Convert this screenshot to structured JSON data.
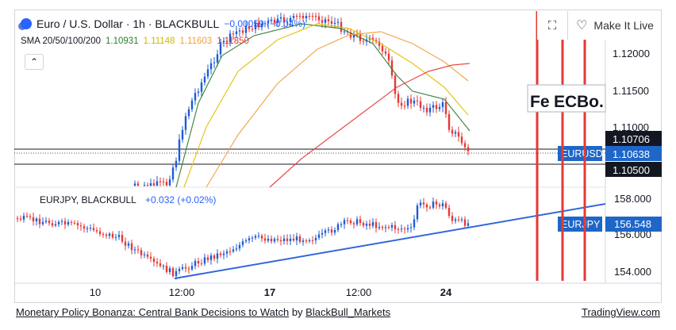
{
  "header": {
    "symbol": "Euro / U.S. Dollar · 1h · BLACKBULL",
    "change": "−0.00059 (−0.04%)",
    "sma_label": "SMA 20/50/100/200",
    "sma_values": [
      "1.10931",
      "1.11148",
      "1.11603",
      "1.11850"
    ],
    "sma_colors": [
      "#2e7d32",
      "#e0c000",
      "#f0a03c",
      "#e53935"
    ]
  },
  "buttons": {
    "collapse": "⌃",
    "expand": "⛶",
    "make_live": "Make It Live",
    "heart": "♡"
  },
  "price_axis": {
    "labels": [
      "1.12000",
      "1.11500",
      "1.11000"
    ],
    "tags": [
      {
        "text": "1.10706",
        "bg": "#131722"
      },
      {
        "text": "1.10638",
        "bg": "#1e66c8"
      },
      {
        "text": "1.10500",
        "bg": "#131722"
      }
    ],
    "symbol_tag": "EURUSD"
  },
  "sub_pane": {
    "title": "EURJPY, BLACKBULL",
    "change": "+0.032 (+0.02%)",
    "axis_labels": [
      "158.000",
      "156.000",
      "154.000"
    ],
    "last_tag": "156.548",
    "symbol_tag": "EURJPY"
  },
  "events": [
    "Fe",
    "EC",
    "Bo."
  ],
  "time_axis": [
    "10",
    "12:00",
    "17",
    "12:00",
    "24"
  ],
  "footer": {
    "title": "Monetary Policy Bonanza: Central Bank Decisions to Watch",
    "by": "by",
    "author": "BlackBull_Markets",
    "site": "TradingView.com"
  },
  "colors": {
    "up": "#1e5bd6",
    "down": "#e53935",
    "trendline": "#3366dd",
    "event_line": "#e53935"
  }
}
